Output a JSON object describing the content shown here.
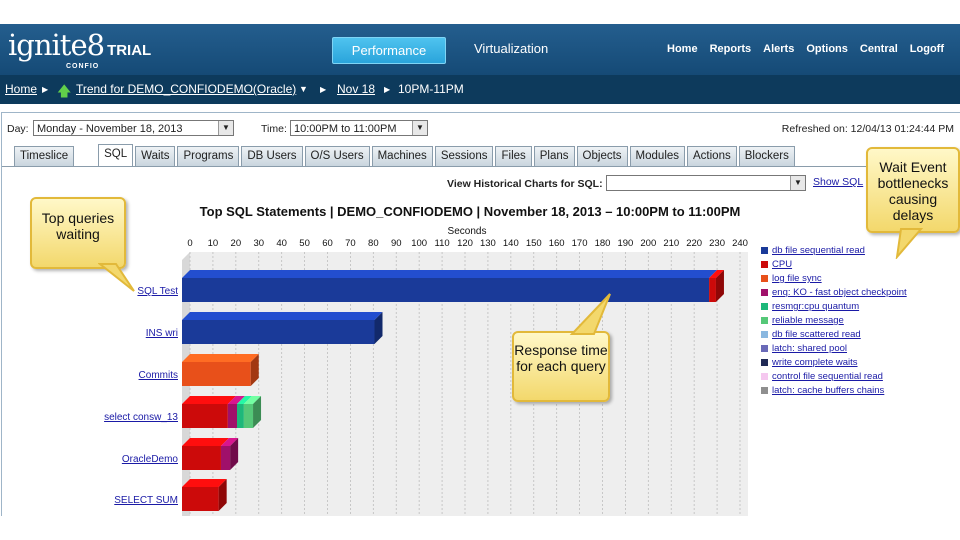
{
  "app": {
    "brand": "ignite8",
    "trial": "TRIAL",
    "sub_brand": "CONFIO"
  },
  "nav": {
    "performance": "Performance",
    "virtualization": "Virtualization",
    "links": [
      "Home",
      "Reports",
      "Alerts",
      "Options",
      "Central",
      "Logoff"
    ]
  },
  "breadcrumb": {
    "home": "Home",
    "trend": "Trend for DEMO_CONFIODEMO(Oracle)",
    "date": "Nov 18",
    "time": "10PM-11PM"
  },
  "filters": {
    "day_label": "Day:",
    "day_value": "Monday - November 18, 2013",
    "time_label": "Time:",
    "time_value": "10:00PM to 11:00PM",
    "refreshed": "Refreshed on: 12/04/13 01:24:44 PM"
  },
  "tabs": [
    "Timeslice",
    "SQL",
    "Waits",
    "Programs",
    "DB Users",
    "O/S Users",
    "Machines",
    "Sessions",
    "Files",
    "Plans",
    "Objects",
    "Modules",
    "Actions",
    "Blockers"
  ],
  "active_tab": "SQL",
  "history": {
    "label": "View Historical Charts for SQL:",
    "value": "",
    "link": "Show SQL"
  },
  "callouts": {
    "top_queries": "Top queries waiting",
    "wait_events": "Wait Event bottlenecks causing delays",
    "response": "Response time for each query"
  },
  "colors": {
    "accent": "#2aa4db",
    "header": "#1b5383",
    "breadcrumb": "#0d3a5c"
  },
  "chart_data": {
    "type": "bar",
    "orientation": "horizontal",
    "stacked": true,
    "title": "Top SQL Statements  |  DEMO_CONFIODEMO  |  November 18, 2013 – 10:00PM to 11:00PM",
    "xlabel": "Seconds",
    "xlim": [
      0,
      240
    ],
    "xticks": [
      0,
      10,
      20,
      30,
      40,
      50,
      60,
      70,
      80,
      90,
      100,
      110,
      120,
      130,
      140,
      150,
      160,
      170,
      180,
      190,
      200,
      210,
      220,
      230,
      240
    ],
    "grid": true,
    "legend_position": "right",
    "categories": [
      "SQL Test",
      "INS wri",
      "Commits",
      "select consw_13",
      "OracleDemo",
      "SELECT SUM"
    ],
    "series": [
      {
        "name": "db file sequential read",
        "color": "#1a3a99",
        "values": [
          230,
          84,
          0,
          0,
          0,
          0
        ]
      },
      {
        "name": "CPU",
        "color": "#cc0a0a",
        "values": [
          3,
          0,
          0,
          20,
          17,
          16
        ]
      },
      {
        "name": "log file sync",
        "color": "#e8501a",
        "values": [
          0,
          0,
          30,
          0,
          0,
          0
        ]
      },
      {
        "name": "enq: KO - fast object checkpoint",
        "color": "#a0106a",
        "values": [
          0,
          0,
          0,
          4,
          4,
          0
        ]
      },
      {
        "name": "resmgr:cpu quantum",
        "color": "#1db87a",
        "values": [
          0,
          0,
          0,
          3,
          0,
          0
        ]
      },
      {
        "name": "reliable message",
        "color": "#55c878",
        "values": [
          0,
          0,
          0,
          4,
          0,
          0
        ]
      },
      {
        "name": "db file scattered read",
        "color": "#8ab8e0",
        "values": [
          0,
          0,
          0,
          0,
          0,
          0
        ]
      },
      {
        "name": "latch: shared pool",
        "color": "#6a6ab8",
        "values": [
          0,
          0,
          0,
          0,
          0,
          0
        ]
      },
      {
        "name": "write complete waits",
        "color": "#202a55",
        "values": [
          0,
          0,
          0,
          0,
          0,
          0
        ]
      },
      {
        "name": "control file sequential read",
        "color": "#f5c8ef",
        "values": [
          0,
          0,
          0,
          0,
          0,
          0
        ]
      },
      {
        "name": "latch: cache buffers chains",
        "color": "#8f8f8f",
        "values": [
          0,
          0,
          0,
          0,
          0,
          0
        ]
      }
    ]
  }
}
